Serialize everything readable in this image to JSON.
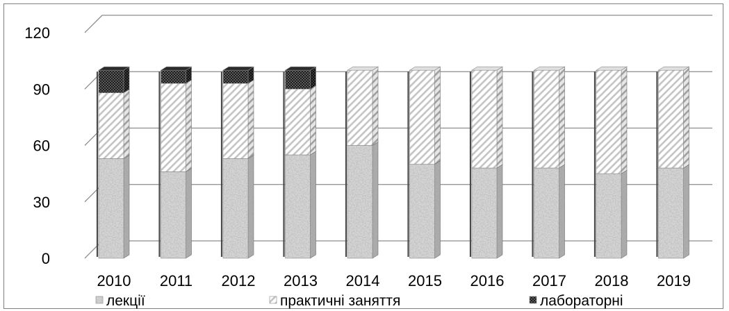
{
  "chart_data": {
    "type": "bar",
    "stacked": true,
    "categories": [
      "2010",
      "2011",
      "2012",
      "2013",
      "2014",
      "2015",
      "2016",
      "2017",
      "2018",
      "2019"
    ],
    "series": [
      {
        "name": "лекції",
        "values": [
          53,
          46,
          53,
          55,
          60,
          50,
          48,
          48,
          45,
          48
        ],
        "pattern": "granite"
      },
      {
        "name": "практичні заняття",
        "values": [
          35,
          47,
          40,
          35,
          40,
          50,
          52,
          52,
          55,
          52
        ],
        "pattern": "diagonal-stripes"
      },
      {
        "name": "лабораторні",
        "values": [
          12,
          7,
          7,
          10,
          0,
          0,
          0,
          0,
          0,
          0
        ],
        "pattern": "checkered-dark"
      }
    ],
    "y_ticks": [
      "0",
      "30",
      "60",
      "90",
      "120"
    ],
    "ylim": [
      0,
      120
    ],
    "grid": true,
    "legend_position": "bottom",
    "title": "",
    "xlabel": "",
    "ylabel": ""
  }
}
